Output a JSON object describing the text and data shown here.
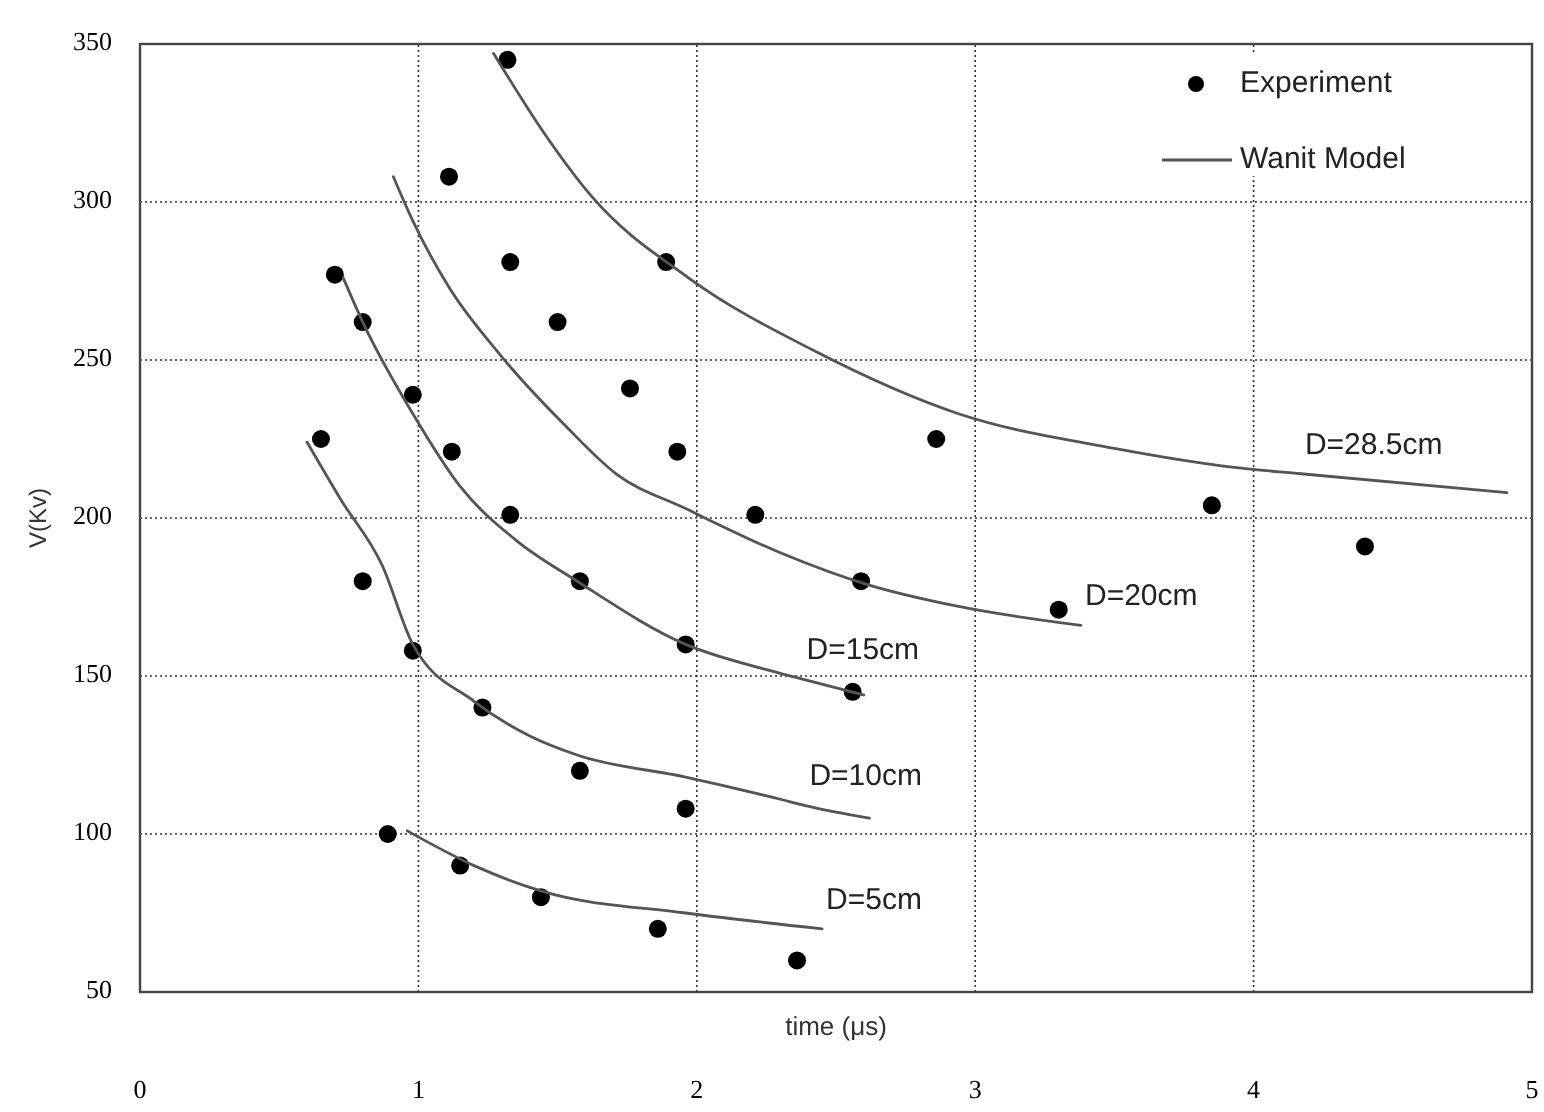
{
  "chart_data": {
    "type": "scatter",
    "xlabel": "time (μs)",
    "ylabel": "V(Kv)",
    "xlim": [
      0,
      5
    ],
    "xticks": [
      0,
      1,
      2,
      3,
      4,
      5
    ],
    "ylim": [
      50,
      350
    ],
    "yticks": [
      50,
      100,
      150,
      200,
      250,
      300,
      350
    ],
    "grid": true,
    "legend": "top right",
    "marker": "circle",
    "series": [
      {
        "name": "Experiment",
        "color": "#000000",
        "x": [
          1.32,
          1.11,
          0.7,
          0.8,
          1.33,
          1.89,
          1.5,
          0.98,
          1.76,
          0.65,
          1.12,
          1.93,
          1.33,
          2.21,
          0.8,
          1.58,
          2.59,
          0.98,
          1.96,
          2.56,
          1.23,
          1.58,
          1.96,
          0.89,
          1.15,
          1.44,
          1.86,
          2.36,
          2.86,
          3.85,
          4.4,
          3.3
        ],
        "values": [
          345,
          308,
          277,
          262,
          281,
          281,
          262,
          239,
          241,
          225,
          221,
          221,
          201,
          201,
          180,
          180,
          180,
          158,
          160,
          145,
          140,
          120,
          108,
          100,
          90,
          80,
          70,
          60,
          225,
          204,
          191,
          171
        ]
      },
      {
        "name": "Wanit Model",
        "type": "line",
        "color": "#555555",
        "marker": "none",
        "line_style": "solid",
        "x": [
          1.27,
          1.45,
          1.62,
          1.97,
          2.42,
          2.94,
          3.5,
          3.93,
          4.17,
          4.91,
          null,
          0.91,
          0.98,
          1.11,
          1.29,
          1.53,
          1.71,
          1.96,
          2.3,
          2.61,
          2.94,
          3.38,
          null,
          0.73,
          0.8,
          0.98,
          1.15,
          1.35,
          1.57,
          1.96,
          2.25,
          2.38,
          2.6,
          null,
          0.6,
          0.72,
          0.87,
          0.98,
          1.2,
          1.4,
          1.57,
          1.96,
          2.3,
          2.39,
          2.62,
          null,
          0.96,
          1.2,
          1.44,
          1.96,
          2.45
        ],
        "values": [
          347,
          322,
          302,
          276,
          253,
          233,
          222,
          216,
          214,
          208,
          null,
          308,
          294,
          273,
          252,
          229,
          214,
          203,
          189,
          179,
          172,
          166,
          null,
          276,
          262,
          233,
          210,
          193,
          180,
          160,
          152,
          149,
          144,
          null,
          224,
          206,
          185,
          160,
          142,
          131,
          125,
          118,
          111,
          109,
          105,
          null,
          101,
          90,
          82,
          75,
          70
        ]
      }
    ],
    "annotations": [
      {
        "text": "D=28.5cm",
        "x": 4.17,
        "y": 214
      },
      {
        "text": "D=20cm",
        "x": 3.38,
        "y": 166
      },
      {
        "text": "D=15cm",
        "x": 2.38,
        "y": 149
      },
      {
        "text": "D=10cm",
        "x": 2.39,
        "y": 109
      },
      {
        "text": "D=5cm",
        "x": 2.45,
        "y": 70
      }
    ]
  }
}
